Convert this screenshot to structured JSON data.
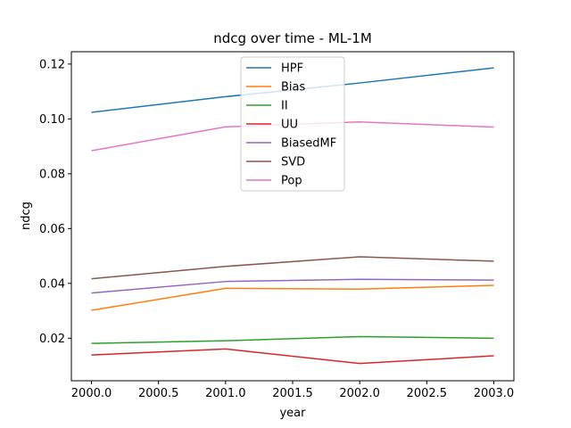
{
  "chart_data": {
    "type": "line",
    "title": "ndcg over time - ML-1M",
    "xlabel": "year",
    "ylabel": "ndcg",
    "x": [
      2000,
      2001,
      2002,
      2003
    ],
    "xlim": [
      1999.85,
      2003.15
    ],
    "ylim": [
      0.0045,
      0.1245
    ],
    "xticks": [
      2000.0,
      2000.5,
      2001.0,
      2001.5,
      2002.0,
      2002.5,
      2003.0
    ],
    "xtick_labels": [
      "2000.0",
      "2000.5",
      "2001.0",
      "2001.5",
      "2002.0",
      "2002.5",
      "2003.0"
    ],
    "yticks": [
      0.02,
      0.04,
      0.06,
      0.08,
      0.1,
      0.12
    ],
    "ytick_labels": [
      "0.02",
      "0.04",
      "0.06",
      "0.08",
      "0.10",
      "0.12"
    ],
    "grid": false,
    "legend_position": "top-center",
    "series": [
      {
        "name": "HPF",
        "color": "#1f77b4",
        "values": [
          0.1024,
          0.1081,
          0.1131,
          0.1186
        ]
      },
      {
        "name": "Bias",
        "color": "#ff7f0e",
        "values": [
          0.0302,
          0.0382,
          0.0379,
          0.0393
        ]
      },
      {
        "name": "II",
        "color": "#2ca02c",
        "values": [
          0.0181,
          0.0191,
          0.0206,
          0.02
        ]
      },
      {
        "name": "UU",
        "color": "#d62728",
        "values": [
          0.0139,
          0.0161,
          0.0108,
          0.0136
        ]
      },
      {
        "name": "BiasedMF",
        "color": "#9467bd",
        "values": [
          0.0365,
          0.0407,
          0.0415,
          0.0412
        ]
      },
      {
        "name": "SVD",
        "color": "#8c564b",
        "values": [
          0.0417,
          0.0462,
          0.0497,
          0.0481
        ]
      },
      {
        "name": "Pop",
        "color": "#e377c2",
        "values": [
          0.0884,
          0.0971,
          0.0989,
          0.097
        ]
      }
    ]
  }
}
